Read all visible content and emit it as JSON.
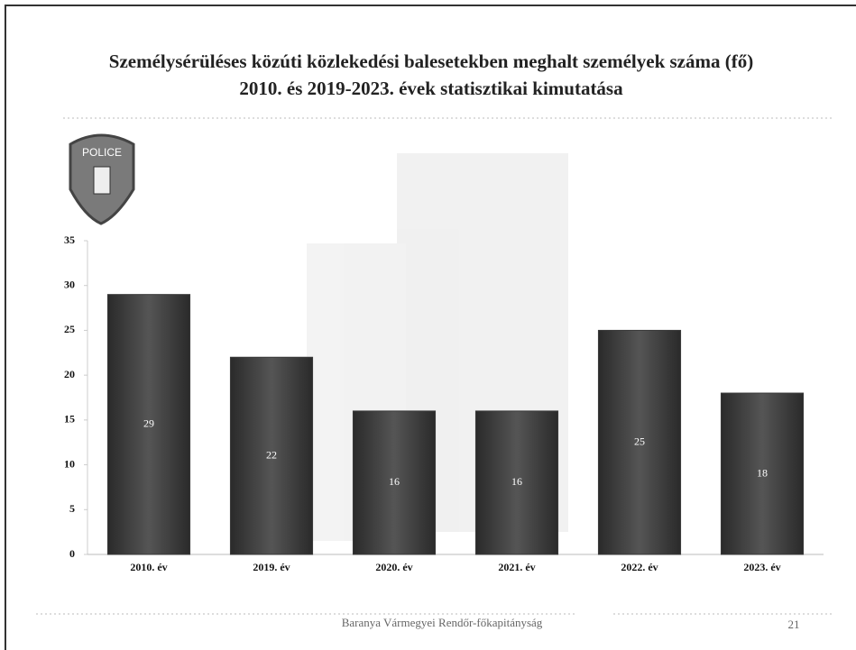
{
  "chart_data": {
    "type": "bar",
    "title": "Személysérüléses közúti közlekedési balesetekben meghalt személyek száma (fő)",
    "subtitle": "2010. és 2019-2023. évek statisztikai kimutatása",
    "categories": [
      "2010. év",
      "2019. év",
      "2020. év",
      "2021. év",
      "2022. év",
      "2023. év"
    ],
    "values": [
      29,
      22,
      16,
      16,
      25,
      18
    ],
    "color": "#3a3a3a",
    "ylim": [
      0,
      35
    ],
    "yticks": [
      0,
      5,
      10,
      15,
      20,
      25,
      30,
      35
    ],
    "grid": false
  },
  "logo_text": "POLICE",
  "footer": "Baranya Vármegyei Rendőr-főkapitányság",
  "page_number": "21"
}
